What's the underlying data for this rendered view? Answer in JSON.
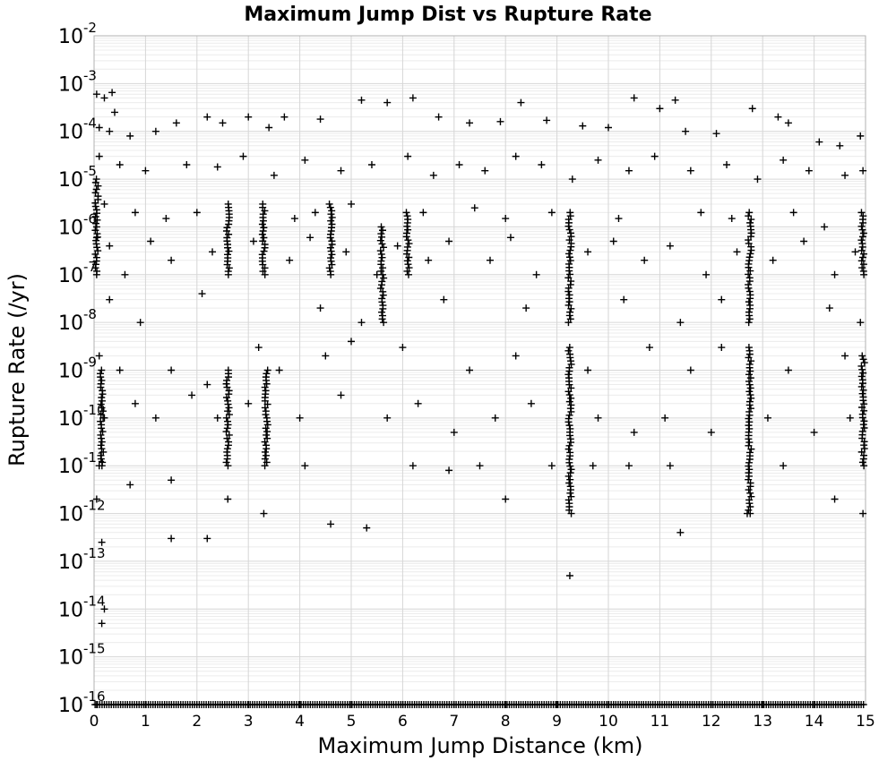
{
  "chart_data": {
    "type": "scatter",
    "title": "Maximum Jump Dist vs Rupture Rate",
    "xlabel": "Maximum Jump Distance (km)",
    "ylabel": "Rupture Rate (/yr)",
    "xlim": [
      0,
      15
    ],
    "ylim": [
      1e-16,
      0.01
    ],
    "y_scale": "log",
    "grid": true,
    "marker": "plus",
    "marker_color": "#000000",
    "x_ticks": [
      "0",
      "1",
      "2",
      "3",
      "4",
      "5",
      "6",
      "7",
      "8",
      "9",
      "10",
      "11",
      "12",
      "13",
      "14",
      "15"
    ],
    "y_ticks": [
      {
        "base": "10",
        "exp": "-16"
      },
      {
        "base": "10",
        "exp": "-15"
      },
      {
        "base": "10",
        "exp": "-14"
      },
      {
        "base": "10",
        "exp": "-13"
      },
      {
        "base": "10",
        "exp": "-12"
      },
      {
        "base": "10",
        "exp": "-11"
      },
      {
        "base": "10",
        "exp": "-10"
      },
      {
        "base": "10",
        "exp": "-9"
      },
      {
        "base": "10",
        "exp": "-8"
      },
      {
        "base": "10",
        "exp": "-7"
      },
      {
        "base": "10",
        "exp": "-6"
      },
      {
        "base": "10",
        "exp": "-5"
      },
      {
        "base": "10",
        "exp": "-4"
      },
      {
        "base": "10",
        "exp": "-3"
      },
      {
        "base": "10",
        "exp": "-2"
      }
    ],
    "series": [
      {
        "points": [
          [
            0.05,
            0.0006
          ],
          [
            0.2,
            0.0005
          ],
          [
            0.35,
            0.00065
          ],
          [
            0.4,
            0.00025
          ],
          [
            0.1,
            0.00012
          ],
          [
            0.3,
            0.0001
          ],
          [
            0.7,
            8e-05
          ],
          [
            1.2,
            0.0001
          ],
          [
            1.6,
            0.00015
          ],
          [
            2.2,
            0.0002
          ],
          [
            2.5,
            0.00015
          ],
          [
            3.0,
            0.0002
          ],
          [
            3.4,
            0.00012
          ],
          [
            3.7,
            0.0002
          ],
          [
            4.4,
            0.00018
          ],
          [
            5.2,
            0.00045
          ],
          [
            5.7,
            0.0004
          ],
          [
            6.2,
            0.0005
          ],
          [
            6.7,
            0.0002
          ],
          [
            7.3,
            0.00015
          ],
          [
            7.9,
            0.00016
          ],
          [
            8.3,
            0.0004
          ],
          [
            8.8,
            0.00017
          ],
          [
            9.5,
            0.00013
          ],
          [
            10.0,
            0.00012
          ],
          [
            10.5,
            0.0005
          ],
          [
            11.0,
            0.0003
          ],
          [
            11.3,
            0.00045
          ],
          [
            11.5,
            0.0001
          ],
          [
            12.1,
            9e-05
          ],
          [
            12.8,
            0.0003
          ],
          [
            13.3,
            0.0002
          ],
          [
            13.5,
            0.00015
          ],
          [
            14.1,
            6e-05
          ],
          [
            14.5,
            5e-05
          ],
          [
            14.9,
            8e-05
          ],
          [
            0.1,
            3e-05
          ],
          [
            0.5,
            2e-05
          ],
          [
            1.0,
            1.5e-05
          ],
          [
            1.8,
            2e-05
          ],
          [
            2.4,
            1.8e-05
          ],
          [
            2.9,
            3e-05
          ],
          [
            3.5,
            1.2e-05
          ],
          [
            4.1,
            2.5e-05
          ],
          [
            4.8,
            1.5e-05
          ],
          [
            5.4,
            2e-05
          ],
          [
            6.1,
            3e-05
          ],
          [
            6.6,
            1.2e-05
          ],
          [
            7.1,
            2e-05
          ],
          [
            7.6,
            1.5e-05
          ],
          [
            8.2,
            3e-05
          ],
          [
            8.7,
            2e-05
          ],
          [
            9.3,
            1e-05
          ],
          [
            9.8,
            2.5e-05
          ],
          [
            10.4,
            1.5e-05
          ],
          [
            10.9,
            3e-05
          ],
          [
            11.6,
            1.5e-05
          ],
          [
            12.3,
            2e-05
          ],
          [
            12.9,
            1e-05
          ],
          [
            13.4,
            2.5e-05
          ],
          [
            13.9,
            1.5e-05
          ],
          [
            14.6,
            1.2e-05
          ],
          [
            14.95,
            1.5e-05
          ],
          [
            0.2,
            3e-06
          ],
          [
            0.8,
            2e-06
          ],
          [
            1.4,
            1.5e-06
          ],
          [
            2.0,
            2e-06
          ],
          [
            3.9,
            1.5e-06
          ],
          [
            4.3,
            2e-06
          ],
          [
            5.0,
            3e-06
          ],
          [
            6.4,
            2e-06
          ],
          [
            7.4,
            2.5e-06
          ],
          [
            8.0,
            1.5e-06
          ],
          [
            8.9,
            2e-06
          ],
          [
            10.2,
            1.5e-06
          ],
          [
            11.8,
            2e-06
          ],
          [
            12.4,
            1.5e-06
          ],
          [
            13.6,
            2e-06
          ],
          [
            14.2,
            1e-06
          ],
          [
            0.05,
            6e-07
          ],
          [
            0.3,
            4e-07
          ],
          [
            0.6,
            1e-07
          ],
          [
            1.1,
            5e-07
          ],
          [
            1.5,
            2e-07
          ],
          [
            2.3,
            3e-07
          ],
          [
            3.1,
            5e-07
          ],
          [
            3.8,
            2e-07
          ],
          [
            4.2,
            6e-07
          ],
          [
            4.9,
            3e-07
          ],
          [
            5.5,
            1e-07
          ],
          [
            5.9,
            4e-07
          ],
          [
            6.5,
            2e-07
          ],
          [
            6.9,
            5e-07
          ],
          [
            7.7,
            2e-07
          ],
          [
            8.1,
            6e-07
          ],
          [
            8.6,
            1e-07
          ],
          [
            9.6,
            3e-07
          ],
          [
            10.1,
            5e-07
          ],
          [
            10.7,
            2e-07
          ],
          [
            11.2,
            4e-07
          ],
          [
            11.9,
            1e-07
          ],
          [
            12.5,
            3e-07
          ],
          [
            13.2,
            2e-07
          ],
          [
            13.8,
            5e-07
          ],
          [
            14.4,
            1e-07
          ],
          [
            14.8,
            3e-07
          ],
          [
            0.3,
            3e-08
          ],
          [
            0.9,
            1e-08
          ],
          [
            2.1,
            4e-08
          ],
          [
            4.4,
            2e-08
          ],
          [
            5.2,
            1e-08
          ],
          [
            6.8,
            3e-08
          ],
          [
            8.4,
            2e-08
          ],
          [
            10.3,
            3e-08
          ],
          [
            11.4,
            1e-08
          ],
          [
            12.2,
            3e-08
          ],
          [
            14.3,
            2e-08
          ],
          [
            14.9,
            1e-08
          ],
          [
            0.1,
            2e-09
          ],
          [
            0.5,
            1e-09
          ],
          [
            1.5,
            1e-09
          ],
          [
            2.2,
            5e-10
          ],
          [
            3.2,
            3e-09
          ],
          [
            3.6,
            1e-09
          ],
          [
            4.5,
            2e-09
          ],
          [
            5.0,
            4e-09
          ],
          [
            6.0,
            3e-09
          ],
          [
            7.3,
            1e-09
          ],
          [
            8.2,
            2e-09
          ],
          [
            9.6,
            1e-09
          ],
          [
            10.8,
            3e-09
          ],
          [
            11.6,
            1e-09
          ],
          [
            12.2,
            3e-09
          ],
          [
            13.5,
            1e-09
          ],
          [
            14.6,
            2e-09
          ],
          [
            0.2,
            1e-10
          ],
          [
            0.8,
            2e-10
          ],
          [
            1.2,
            1e-10
          ],
          [
            1.9,
            3e-10
          ],
          [
            2.4,
            1e-10
          ],
          [
            3.0,
            2e-10
          ],
          [
            4.0,
            1e-10
          ],
          [
            4.8,
            3e-10
          ],
          [
            5.7,
            1e-10
          ],
          [
            6.3,
            2e-10
          ],
          [
            7.0,
            5e-11
          ],
          [
            7.8,
            1e-10
          ],
          [
            8.5,
            2e-10
          ],
          [
            9.8,
            1e-10
          ],
          [
            10.5,
            5e-11
          ],
          [
            11.1,
            1e-10
          ],
          [
            12.0,
            5e-11
          ],
          [
            13.1,
            1e-10
          ],
          [
            14.0,
            5e-11
          ],
          [
            14.7,
            1e-10
          ],
          [
            0.1,
            1e-11
          ],
          [
            0.7,
            4e-12
          ],
          [
            1.5,
            5e-12
          ],
          [
            2.6,
            2e-12
          ],
          [
            3.3,
            1e-12
          ],
          [
            4.1,
            1e-11
          ],
          [
            4.6,
            6e-13
          ],
          [
            5.3,
            5e-13
          ],
          [
            6.2,
            1e-11
          ],
          [
            6.9,
            8e-12
          ],
          [
            7.5,
            1e-11
          ],
          [
            8.0,
            2e-12
          ],
          [
            8.9,
            1e-11
          ],
          [
            9.7,
            1e-11
          ],
          [
            10.4,
            1e-11
          ],
          [
            11.2,
            1e-11
          ],
          [
            12.7,
            1e-12
          ],
          [
            13.4,
            1e-11
          ],
          [
            14.4,
            2e-12
          ],
          [
            14.95,
            1e-12
          ],
          [
            0.05,
            2e-12
          ],
          [
            0.15,
            2.5e-13
          ],
          [
            1.5,
            3e-13
          ],
          [
            2.2,
            3e-13
          ],
          [
            11.4,
            4e-13
          ],
          [
            9.25,
            5e-14
          ],
          [
            0.2,
            1e-14
          ],
          [
            0.15,
            5e-15
          ],
          [
            0.05,
            1e-16
          ],
          [
            1.0,
            1e-16
          ],
          [
            2.0,
            1e-16
          ],
          [
            3.0,
            1e-16
          ],
          [
            4.0,
            1e-16
          ],
          [
            5.0,
            1e-16
          ],
          [
            6.0,
            1e-16
          ],
          [
            7.0,
            1e-16
          ],
          [
            8.0,
            1e-16
          ],
          [
            9.0,
            1e-16
          ],
          [
            10.0,
            1e-16
          ],
          [
            11.0,
            1e-16
          ],
          [
            12.0,
            1e-16
          ],
          [
            13.0,
            1e-16
          ],
          [
            14.0,
            1e-16
          ]
        ],
        "dense_columns": [
          {
            "x": 0.05,
            "y_range": [
              1e-07,
              1e-05
            ]
          },
          {
            "x": 0.15,
            "y_range": [
              1e-11,
              1e-09
            ]
          },
          {
            "x": 2.6,
            "y_range": [
              1e-07,
              3e-06
            ]
          },
          {
            "x": 2.6,
            "y_range": [
              1e-11,
              1e-09
            ]
          },
          {
            "x": 3.3,
            "y_range": [
              1e-07,
              3e-06
            ]
          },
          {
            "x": 3.35,
            "y_range": [
              1e-11,
              1e-09
            ]
          },
          {
            "x": 4.6,
            "y_range": [
              1e-07,
              3e-06
            ]
          },
          {
            "x": 5.6,
            "y_range": [
              1e-08,
              1e-06
            ]
          },
          {
            "x": 6.1,
            "y_range": [
              1e-07,
              2e-06
            ]
          },
          {
            "x": 9.25,
            "y_range": [
              1e-08,
              2e-06
            ]
          },
          {
            "x": 9.25,
            "y_range": [
              1e-12,
              3e-09
            ]
          },
          {
            "x": 12.75,
            "y_range": [
              1e-08,
              2e-06
            ]
          },
          {
            "x": 12.75,
            "y_range": [
              1e-12,
              3e-09
            ]
          },
          {
            "x": 14.95,
            "y_range": [
              1e-07,
              2e-06
            ]
          },
          {
            "x": 14.95,
            "y_range": [
              1e-11,
              2e-09
            ]
          }
        ]
      }
    ]
  }
}
